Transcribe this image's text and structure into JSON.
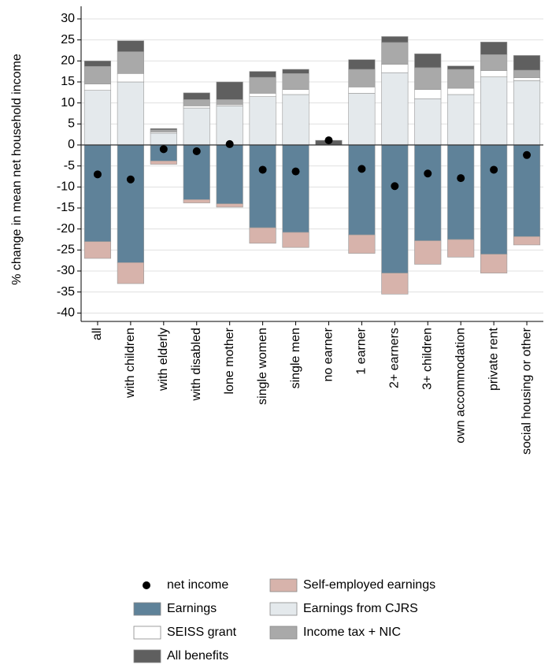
{
  "chart_data": {
    "type": "bar",
    "stacked": true,
    "y_label": "% change in mean net household income",
    "categories": [
      "all",
      "with children",
      "with elderly",
      "with disabled",
      "lone mother",
      "single women",
      "single men",
      "no earner",
      "1 earner",
      "2+ earners",
      "3+ children",
      "own accommodation",
      "private rent",
      "social housing or other"
    ],
    "series": [
      {
        "name": "Earnings",
        "color": "#5f8299",
        "values": [
          -23,
          -28,
          -3.8,
          -13,
          -14,
          -19.7,
          -20.8,
          0,
          -21.4,
          -30.5,
          -22.8,
          -22.5,
          -26,
          -21.8
        ]
      },
      {
        "name": "Self-employed earnings",
        "color": "#d7b3ab",
        "values": [
          -4,
          -5,
          -0.8,
          -0.8,
          -0.8,
          -3.7,
          -3.6,
          0,
          -4.4,
          -5,
          -5.6,
          -4.2,
          -4.5,
          -2
        ]
      },
      {
        "name": "Earnings from CJRS",
        "color": "#e4e9ec",
        "values": [
          13,
          15,
          2.8,
          8.8,
          9.3,
          11.5,
          12,
          0,
          12.3,
          17.2,
          11,
          12,
          16.2,
          15.3
        ]
      },
      {
        "name": "SEISS grant",
        "color": "#ffffff",
        "values": [
          1.5,
          2,
          0.3,
          0.5,
          0.3,
          0.8,
          1.2,
          0,
          1.5,
          2,
          2.2,
          1.5,
          1.5,
          0.7
        ]
      },
      {
        "name": "Income tax + NIC",
        "color": "#a9a9a9",
        "values": [
          4.2,
          5.2,
          0.5,
          1.5,
          1.2,
          3.8,
          3.8,
          0,
          4.2,
          5.2,
          5.2,
          4.5,
          3.8,
          1.8
        ]
      },
      {
        "name": "All benefits",
        "color": "#5f5f5f",
        "values": [
          1.3,
          2.6,
          0.3,
          1.6,
          4.2,
          1.4,
          1,
          1.1,
          2.3,
          1.4,
          3.3,
          0.8,
          3,
          3.5
        ]
      }
    ],
    "points": {
      "name": "net income",
      "color": "#000000",
      "values": [
        -7,
        -8.2,
        -1,
        -1.5,
        0.2,
        -5.9,
        -6.3,
        1.1,
        -5.7,
        -9.8,
        -6.8,
        -7.9,
        -5.9,
        -2.4
      ]
    },
    "ylim": [
      -42,
      33
    ],
    "yticks": [
      -40,
      -35,
      -30,
      -25,
      -20,
      -15,
      -10,
      -5,
      0,
      5,
      10,
      15,
      20,
      25,
      30
    ],
    "grid": true
  }
}
